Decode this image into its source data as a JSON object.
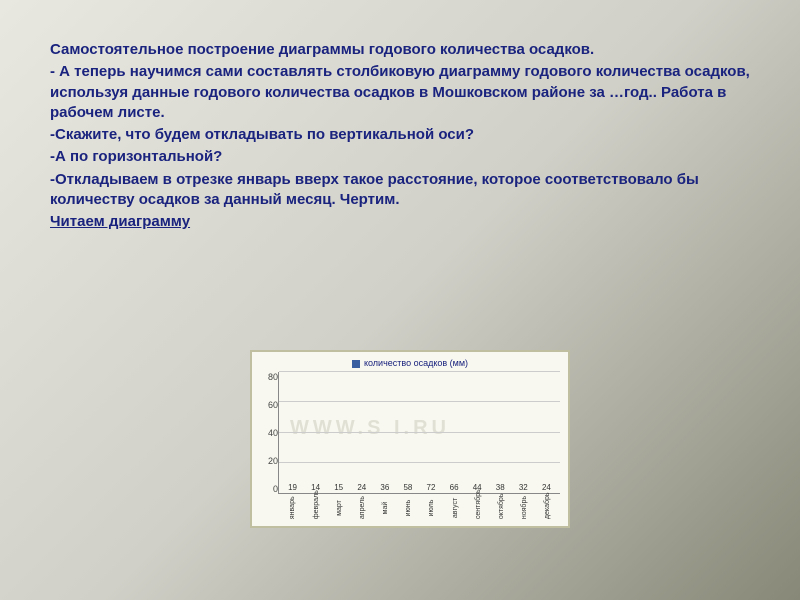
{
  "text": {
    "p1": "Самостоятельное построение диаграммы годового количества осадков.",
    "p2": "- А теперь научимся сами составлять  столбиковую диаграмму годового количества осадков, используя данные годового количества осадков в Мошковском районе за …год.. Работа в рабочем листе.",
    "p3": "-Скажите, что будем откладывать по вертикальной оси?",
    "p4": "-А по горизонтальной?",
    "p5": "-Откладываем в отрезке январь вверх такое расстояние, которое соответствовало бы количеству осадков за данный месяц. Чертим.",
    "p6": "Читаем диаграмму"
  },
  "chart": {
    "type": "bar",
    "legend": "количество осадков (мм)",
    "watermark": "WWW.S     I.RU",
    "ylim": [
      0,
      80
    ],
    "ytick_step": 20,
    "yticks": [
      "80",
      "60",
      "40",
      "20",
      "0"
    ],
    "categories": [
      "январь",
      "февраль",
      "март",
      "апрель",
      "май",
      "июнь",
      "июль",
      "август",
      "сентябрь",
      "октябрь",
      "ноябрь",
      "декабрь"
    ],
    "values": [
      19,
      14,
      15,
      24,
      36,
      58,
      72,
      66,
      44,
      38,
      32,
      24
    ],
    "bar_color": "#3a5fa0",
    "background_color": "#f8f8f0",
    "grid_color": "#cccccc",
    "axis_color": "#888888",
    "label_fontsize": 7,
    "value_fontsize": 8
  }
}
